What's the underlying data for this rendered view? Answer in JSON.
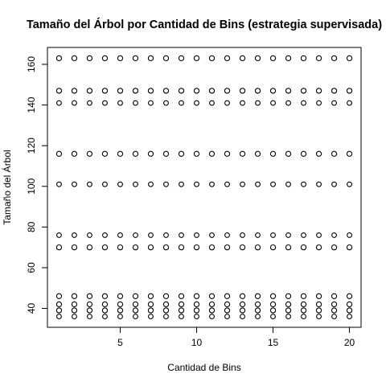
{
  "chart_data": {
    "type": "scatter",
    "title": "Tamaño del Árbol por Cantidad de Bins (estrategia supervisada)",
    "xlabel": "Cantidad de Bins",
    "ylabel": "Tamaño del Árbol",
    "xlim": [
      0.24,
      20.76
    ],
    "ylim": [
      30.7,
      168.3
    ],
    "xticks": [
      5,
      10,
      15,
      20
    ],
    "yticks": [
      40,
      60,
      80,
      100,
      120,
      140,
      160
    ],
    "grid": false,
    "legend": "none",
    "x": [
      1,
      2,
      3,
      4,
      5,
      6,
      7,
      8,
      9,
      10,
      11,
      12,
      13,
      14,
      15,
      16,
      17,
      18,
      19,
      20
    ],
    "y_levels": [
      {
        "y": 163,
        "bold": true
      },
      {
        "y": 147,
        "bold": true
      },
      {
        "y": 141,
        "bold": false
      },
      {
        "y": 116,
        "bold": true
      },
      {
        "y": 101,
        "bold": false
      },
      {
        "y": 76,
        "bold": false
      },
      {
        "y": 70,
        "bold": true
      },
      {
        "y": 46,
        "bold": true
      },
      {
        "y": 42,
        "bold": true
      },
      {
        "y": 39,
        "bold": true
      },
      {
        "y": 36,
        "bold": false
      }
    ],
    "point_color": "#000000"
  }
}
